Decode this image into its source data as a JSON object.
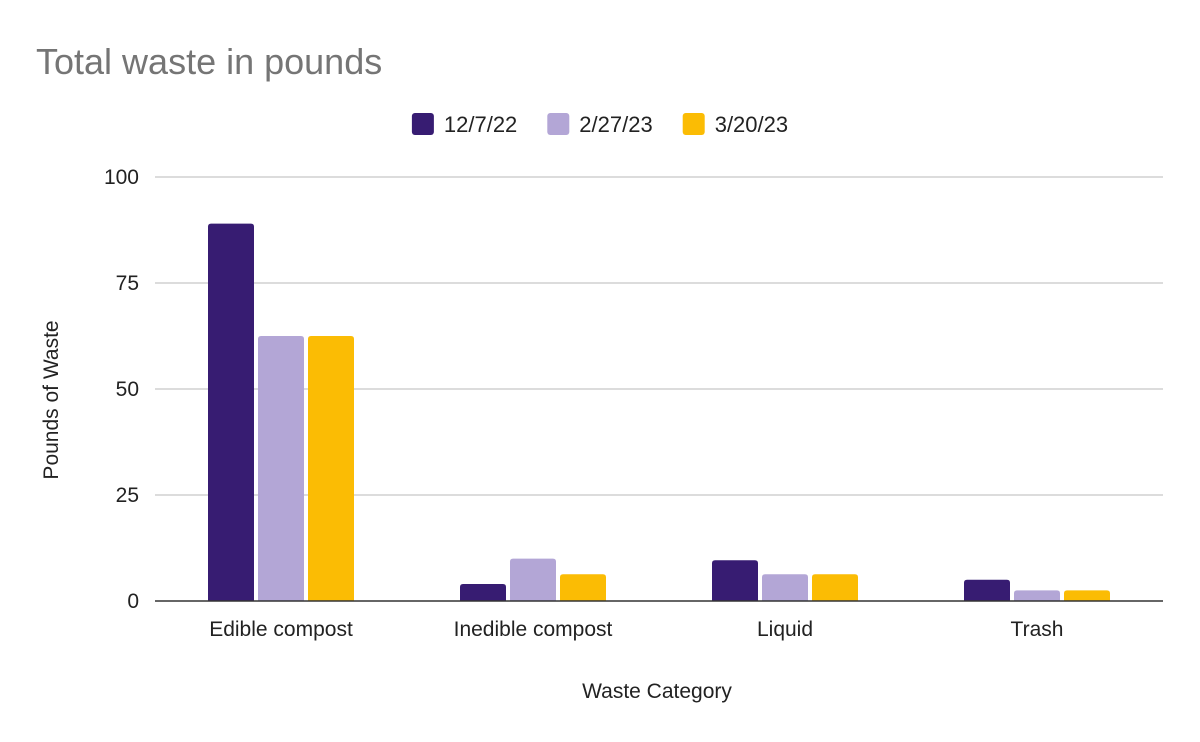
{
  "chart_data": {
    "type": "bar",
    "title": "Total waste in pounds",
    "xlabel": "Waste Category",
    "ylabel": "Pounds of Waste",
    "categories": [
      "Edible compost",
      "Inedible compost",
      "Liquid",
      "Trash"
    ],
    "series": [
      {
        "name": "12/7/22",
        "color": "#371c72",
        "values": [
          89,
          4,
          9.6,
          5
        ]
      },
      {
        "name": "2/27/23",
        "color": "#b3a6d6",
        "values": [
          62.5,
          10,
          6.3,
          2.5
        ]
      },
      {
        "name": "3/20/23",
        "color": "#fbbc04",
        "values": [
          62.5,
          6.3,
          6.3,
          2.5
        ]
      }
    ],
    "ylim": [
      0,
      100
    ],
    "yticks": [
      "0",
      "25",
      "50",
      "75",
      "100"
    ],
    "grid": true,
    "legend_position": "top-center"
  }
}
